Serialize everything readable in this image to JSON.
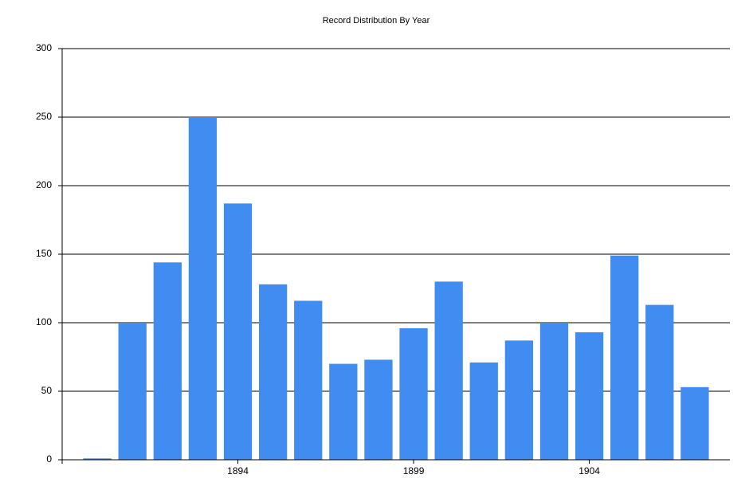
{
  "chart_data": {
    "type": "bar",
    "title": "Record Distribution By Year",
    "categories": [
      null,
      null,
      null,
      null,
      "1894",
      null,
      null,
      null,
      null,
      "1899",
      null,
      null,
      null,
      null,
      "1904",
      null,
      null,
      null
    ],
    "values": [
      1,
      100,
      144,
      250,
      187,
      128,
      116,
      70,
      73,
      96,
      130,
      71,
      87,
      100,
      93,
      149,
      113,
      53
    ],
    "color": "#418cf0",
    "ylim": [
      0,
      300
    ],
    "yticks": [
      0,
      50,
      100,
      150,
      200,
      250,
      300
    ],
    "grid": true
  }
}
